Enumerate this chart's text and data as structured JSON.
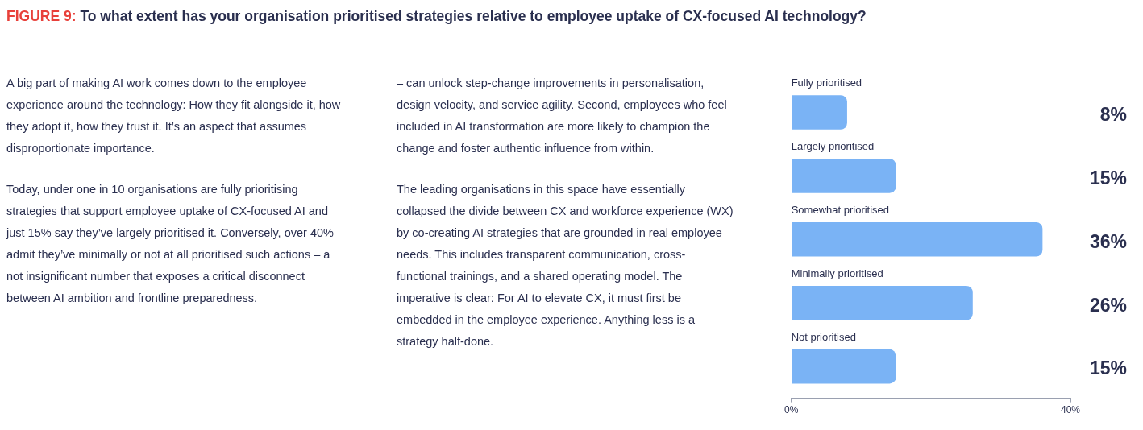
{
  "chart_data": {
    "type": "bar",
    "orientation": "horizontal",
    "title": "FIGURE 9: To what extent has your organisation prioritised strategies relative to employee uptake of CX-focused AI technology?",
    "categories": [
      "Fully prioritised",
      "Largely prioritised",
      "Somewhat prioritised",
      "Minimally prioritised",
      "Not prioritised"
    ],
    "values": [
      8,
      15,
      36,
      26,
      15
    ],
    "value_labels": [
      "8%",
      "15%",
      "36%",
      "26%",
      "15%"
    ],
    "color": "#7ab3f5",
    "xlim": [
      0,
      40
    ],
    "xticks": [
      {
        "value": 0,
        "label": "0%"
      },
      {
        "value": 40,
        "label": "40%"
      }
    ],
    "grid": false,
    "legend": false,
    "annotations": [
      "A big part of making AI work comes down to the employee experience around the technology: How they fit alongside it, how they adopt it, how they trust it. It’s an aspect that assumes disproportionate importance.",
      "Today, under one in 10 organisations are fully prioritising strategies that support employee uptake of CX-focused AI and just 15% say they’ve largely prioritised it. Conversely, over 40% admit they’ve minimally or not at all prioritised such actions – a not insignificant number that exposes a critical disconnect between AI ambition and frontline preparedness.",
      "– can unlock step-change improvements in personalisation, design velocity, and service agility. Second, employees who feel included in AI transformation are more likely to champion the change and foster authentic influence from within.",
      "The leading organisations in this space have essentially collapsed the divide between CX and workforce experience (WX) by co-creating AI strategies that are grounded in real employee needs. This includes transparent communication, cross-functional trainings, and a shared operating model. The imperative is clear: For AI to elevate CX, it must first be embedded in the employee experience. Anything less is a strategy half-done."
    ]
  }
}
